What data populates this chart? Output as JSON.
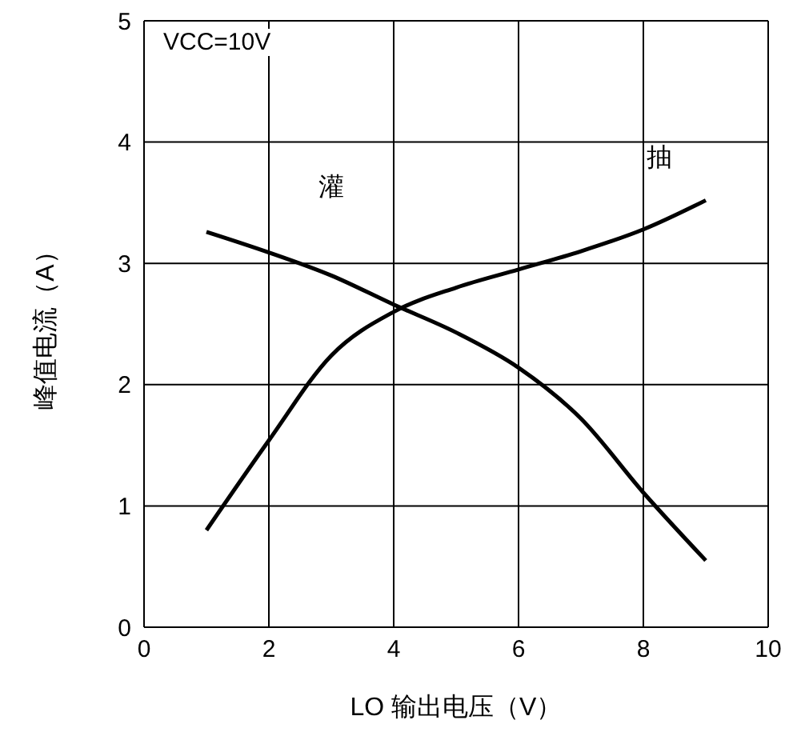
{
  "chart_data": {
    "type": "line",
    "xlabel": "LO 输出电压（V）",
    "ylabel": "峰值电流（A）",
    "x": [
      1,
      2,
      3,
      4,
      5,
      6,
      7,
      8,
      9
    ],
    "series": [
      {
        "name": "灌",
        "color": "#000000",
        "values": [
          3.26,
          3.09,
          2.9,
          2.66,
          2.43,
          2.14,
          1.72,
          1.11,
          0.55
        ]
      },
      {
        "name": "抽",
        "color": "#000000",
        "values": [
          0.8,
          1.54,
          2.24,
          2.6,
          2.8,
          2.95,
          3.1,
          3.28,
          3.52
        ]
      }
    ],
    "xlim": [
      0,
      10
    ],
    "xticks": [
      0,
      2,
      4,
      6,
      8,
      10
    ],
    "ylim": [
      0,
      5
    ],
    "yticks": [
      0,
      1,
      2,
      3,
      4,
      5
    ],
    "grid": true,
    "marker": "none",
    "line_style": "solid",
    "annotations": [
      "VCC=10V"
    ]
  }
}
